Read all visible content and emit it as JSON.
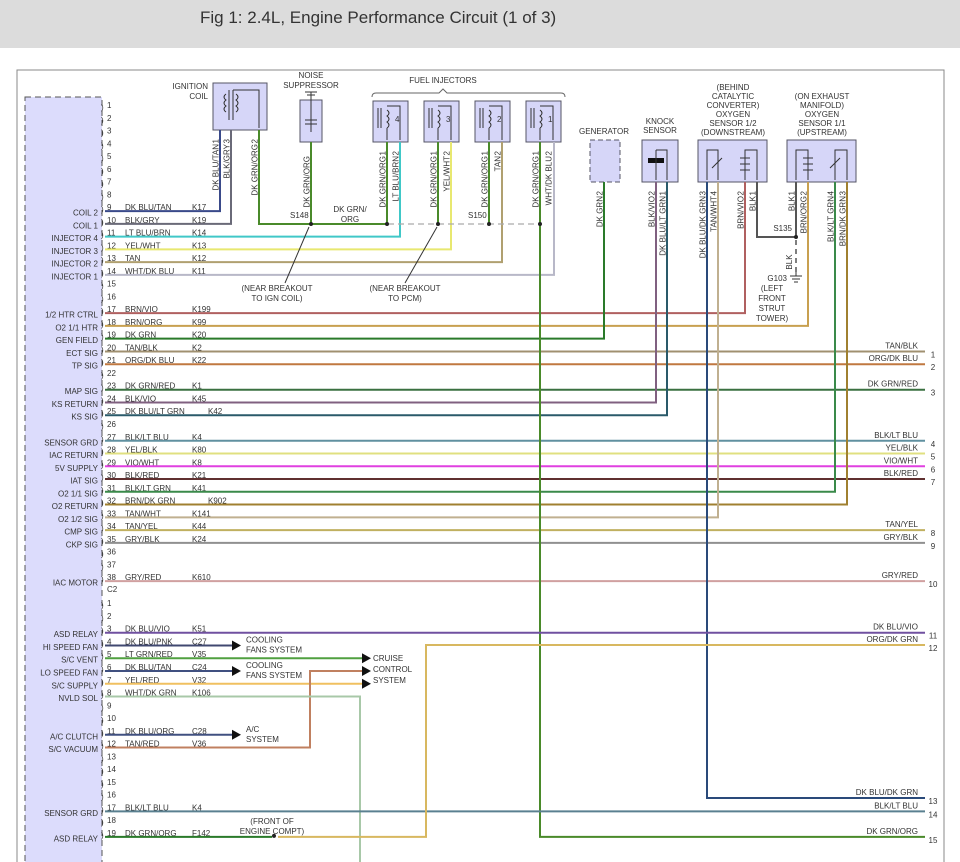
{
  "header": {
    "title": "Fig 1: 2.4L, Engine Performance Circuit (1 of 3)"
  },
  "pcm": {
    "c1_rows": [
      {
        "pin": "1"
      },
      {
        "pin": "2"
      },
      {
        "pin": "3"
      },
      {
        "pin": "4"
      },
      {
        "pin": "5"
      },
      {
        "pin": "6"
      },
      {
        "pin": "7"
      },
      {
        "pin": "8"
      },
      {
        "pin": "9",
        "func": "COIL 2",
        "wire": "DK BLU/TAN",
        "circuit": "K17",
        "hex": "#3a4a8a"
      },
      {
        "pin": "10",
        "func": "COIL 1",
        "wire": "BLK/GRY",
        "circuit": "K19",
        "hex": "#6a6a78"
      },
      {
        "pin": "11",
        "func": "INJECTOR 4",
        "wire": "LT BLU/BRN",
        "circuit": "K14",
        "hex": "#40c8c8"
      },
      {
        "pin": "12",
        "func": "INJECTOR 3",
        "wire": "YEL/WHT",
        "circuit": "K13",
        "hex": "#e8e870"
      },
      {
        "pin": "13",
        "func": "INJECTOR 2",
        "wire": "TAN",
        "circuit": "K12",
        "hex": "#b0a070"
      },
      {
        "pin": "14",
        "func": "INJECTOR 1",
        "wire": "WHT/DK BLU",
        "circuit": "K11",
        "hex": "#b8b8c8"
      },
      {
        "pin": "15"
      },
      {
        "pin": "16"
      },
      {
        "pin": "17",
        "func": "1/2 HTR CTRL",
        "wire": "BRN/VIO",
        "circuit": "K199",
        "hex": "#b06060"
      },
      {
        "pin": "18",
        "func": "O2 1/1 HTR",
        "wire": "BRN/ORG",
        "circuit": "K99",
        "hex": "#c8a050"
      },
      {
        "pin": "19",
        "func": "GEN FIELD",
        "wire": "DK GRN",
        "circuit": "K20",
        "hex": "#2a7a2a"
      },
      {
        "pin": "20",
        "func": "ECT SIG",
        "wire": "TAN/BLK",
        "circuit": "K2",
        "hex": "#a09070"
      },
      {
        "pin": "21",
        "func": "TP SIG",
        "wire": "ORG/DK BLU",
        "circuit": "K22",
        "hex": "#c07840"
      },
      {
        "pin": "22"
      },
      {
        "pin": "23",
        "func": "MAP SIG",
        "wire": "DK GRN/RED",
        "circuit": "K1",
        "hex": "#3a7040"
      },
      {
        "pin": "24",
        "func": "KS RETURN",
        "wire": "BLK/VIO",
        "circuit": "K45",
        "hex": "#806080"
      },
      {
        "pin": "25",
        "func": "KS SIG",
        "wire": "DK BLU/LT GRN",
        "circuit": "K42",
        "hex": "#2a5a6a"
      },
      {
        "pin": "26"
      },
      {
        "pin": "27",
        "func": "SENSOR GRD",
        "wire": "BLK/LT BLU",
        "circuit": "K4",
        "hex": "#6090a0"
      },
      {
        "pin": "28",
        "func": "IAC RETURN",
        "wire": "YEL/BLK",
        "circuit": "K80",
        "hex": "#e0e080"
      },
      {
        "pin": "29",
        "func": "5V SUPPLY",
        "wire": "VIO/WHT",
        "circuit": "K8",
        "hex": "#e040e0"
      },
      {
        "pin": "30",
        "func": "IAT SIG",
        "wire": "BLK/RED",
        "circuit": "K21",
        "hex": "#603030"
      },
      {
        "pin": "31",
        "func": "O2 1/1 SIG",
        "wire": "BLK/LT GRN",
        "circuit": "K41",
        "hex": "#3a8a4a"
      },
      {
        "pin": "32",
        "func": "O2 RETURN",
        "wire": "BRN/DK GRN",
        "circuit": "K902",
        "hex": "#a08030"
      },
      {
        "pin": "33",
        "func": "O2 1/2 SIG",
        "wire": "TAN/WHT",
        "circuit": "K141",
        "hex": "#c0b090"
      },
      {
        "pin": "34",
        "func": "CMP SIG",
        "wire": "TAN/YEL",
        "circuit": "K44",
        "hex": "#c0b060"
      },
      {
        "pin": "35",
        "func": "CKP SIG",
        "wire": "GRY/BLK",
        "circuit": "K24",
        "hex": "#909090"
      },
      {
        "pin": "36"
      },
      {
        "pin": "37"
      },
      {
        "pin": "38",
        "func": "IAC MOTOR",
        "wire": "GRY/RED",
        "circuit": "K610",
        "hex": "#d0a0a0"
      }
    ],
    "c2_label": "C2",
    "c2_rows": [
      {
        "pin": "1"
      },
      {
        "pin": "2"
      },
      {
        "pin": "3",
        "func": "ASD RELAY",
        "wire": "DK BLU/VIO",
        "circuit": "K51",
        "hex": "#7050a0"
      },
      {
        "pin": "4",
        "func": "HI SPEED FAN",
        "wire": "DK BLU/PNK",
        "circuit": "C27",
        "hex": "#404870"
      },
      {
        "pin": "5",
        "func": "S/C VENT",
        "wire": "LT GRN/RED",
        "circuit": "V35",
        "hex": "#50a040"
      },
      {
        "pin": "6",
        "func": "LO SPEED FAN",
        "wire": "DK BLU/TAN",
        "circuit": "C24",
        "hex": "#405080"
      },
      {
        "pin": "7",
        "func": "S/C SUPPLY",
        "wire": "YEL/RED",
        "circuit": "V32",
        "hex": "#f0c060"
      },
      {
        "pin": "8",
        "func": "NVLD SOL",
        "wire": "WHT/DK GRN",
        "circuit": "K106",
        "hex": "#a8c8a8"
      },
      {
        "pin": "9"
      },
      {
        "pin": "10"
      },
      {
        "pin": "11",
        "func": "A/C CLUTCH",
        "wire": "DK BLU/ORG",
        "circuit": "C28",
        "hex": "#405080"
      },
      {
        "pin": "12",
        "func": "S/C VACUUM",
        "wire": "TAN/RED",
        "circuit": "V36",
        "hex": "#c08060"
      },
      {
        "pin": "13"
      },
      {
        "pin": "14"
      },
      {
        "pin": "15"
      },
      {
        "pin": "16"
      },
      {
        "pin": "17",
        "func": "SENSOR GRD",
        "wire": "BLK/LT BLU",
        "circuit": "K4",
        "hex": "#5a8090"
      },
      {
        "pin": "18"
      },
      {
        "pin": "19",
        "func": "ASD RELAY",
        "wire": "DK GRN/ORG",
        "circuit": "F142",
        "hex": "#2a7a2a"
      }
    ]
  },
  "terminals": [
    {
      "num": "1",
      "wire": "TAN/BLK"
    },
    {
      "num": "2",
      "wire": "ORG/DK BLU"
    },
    {
      "num": "3",
      "wire": "DK GRN/RED"
    },
    {
      "num": "4",
      "wire": "BLK/LT BLU"
    },
    {
      "num": "5",
      "wire": "YEL/BLK"
    },
    {
      "num": "6",
      "wire": "VIO/WHT"
    },
    {
      "num": "7",
      "wire": "BLK/RED"
    },
    {
      "num": "8",
      "wire": "TAN/YEL"
    },
    {
      "num": "9",
      "wire": "GRY/BLK"
    },
    {
      "num": "10",
      "wire": "GRY/RED"
    },
    {
      "num": "11",
      "wire": "DK BLU/VIO"
    },
    {
      "num": "12",
      "wire": "ORG/DK GRN"
    },
    {
      "num": "13",
      "wire": "DK BLU/DK GRN"
    },
    {
      "num": "14",
      "wire": "BLK/LT BLU"
    },
    {
      "num": "15",
      "wire": "DK GRN/ORG"
    }
  ],
  "components": {
    "ignition_coil": {
      "label": [
        "IGNITION",
        "COIL"
      ],
      "pins": [
        {
          "pin": "1",
          "wire": "DK BLU/TAN"
        },
        {
          "pin": "3",
          "wire": "BLK/GRY"
        },
        {
          "pin": "2",
          "wire": "DK GRN/ORG"
        }
      ]
    },
    "noise_suppressor": {
      "label": [
        "NOISE",
        "SUPPRESSOR"
      ],
      "pins": [
        {
          "pin": "",
          "wire": "DK GRN/ORG"
        }
      ]
    },
    "fuel_injectors": {
      "label": "FUEL INJECTORS",
      "injectors": [
        {
          "num": "4",
          "pins": [
            {
              "pin": "1",
              "wire": "DK GRN/ORG"
            },
            {
              "pin": "2",
              "wire": "LT BLU/BRN"
            }
          ]
        },
        {
          "num": "3",
          "pins": [
            {
              "pin": "1",
              "wire": "DK GRN/ORG"
            },
            {
              "pin": "2",
              "wire": "YEL/WHT"
            }
          ]
        },
        {
          "num": "2",
          "pins": [
            {
              "pin": "1",
              "wire": "DK GRN/ORG"
            },
            {
              "pin": "2",
              "wire": "TAN"
            }
          ]
        },
        {
          "num": "1",
          "pins": [
            {
              "pin": "1",
              "wire": "DK GRN/ORG"
            },
            {
              "pin": "2",
              "wire": "WHT/DK BLU"
            }
          ]
        }
      ]
    },
    "generator": {
      "label": "GENERATOR",
      "pins": [
        {
          "pin": "2",
          "wire": "DK GRN"
        }
      ]
    },
    "knock_sensor": {
      "label": [
        "KNOCK",
        "SENSOR"
      ],
      "pins": [
        {
          "pin": "2",
          "wire": "BLK/VIO"
        },
        {
          "pin": "1",
          "wire": "DK BLU/LT GRN"
        }
      ]
    },
    "o2_sensor_12": {
      "label": [
        "(BEHIND",
        "CATALYTIC",
        "CONVERTER)",
        "OXYGEN",
        "SENSOR 1/2",
        "(DOWNSTREAM)"
      ],
      "pins": [
        {
          "pin": "3",
          "wire": "DK BLU/DK GRN"
        },
        {
          "pin": "4",
          "wire": "TAN/WHT"
        },
        {
          "pin": "2",
          "wire": "BRN/VIO"
        },
        {
          "pin": "1",
          "wire": "BLK"
        }
      ]
    },
    "o2_sensor_11": {
      "label": [
        "(ON EXHAUST",
        "MANIFOLD)",
        "OXYGEN",
        "SENSOR 1/1",
        "(UPSTREAM)"
      ],
      "pins": [
        {
          "pin": "1",
          "wire": "BLK"
        },
        {
          "pin": "2",
          "wire": "BRN/ORG"
        },
        {
          "pin": "4",
          "wire": "BLK/LT GRN"
        },
        {
          "pin": "3",
          "wire": "BRN/DK GRN"
        }
      ]
    }
  },
  "splices": {
    "s148": "S148",
    "s150": "S150",
    "s135": "S135",
    "splice_wire": [
      "DK GRN/",
      "ORG"
    ],
    "ground_wire": "BLK",
    "g103": [
      "G103",
      "(LEFT",
      "FRONT",
      "STRUT",
      "TOWER)"
    ]
  },
  "notes": {
    "near_ign_coil": [
      "(NEAR BREAKOUT",
      "TO IGN COIL)"
    ],
    "near_pcm": [
      "(NEAR BREAKOUT",
      "TO PCM)"
    ],
    "front_engine": [
      "(FRONT OF",
      "ENGINE COMPT)"
    ]
  },
  "destinations": {
    "cooling_hi": [
      "COOLING",
      "FANS SYSTEM"
    ],
    "cooling_lo": [
      "COOLING",
      "FANS SYSTEM"
    ],
    "cruise": [
      "CRUISE",
      "CONTROL",
      "SYSTEM"
    ],
    "ac": [
      "A/C",
      "SYSTEM"
    ]
  },
  "colors": {
    "pcm_fill": "#dcdcfc",
    "component_fill": "#d6d6f8",
    "dk_grn_org": "#4a8a2a",
    "org_dk_grn": "#d8b860",
    "outline": "#555566"
  }
}
